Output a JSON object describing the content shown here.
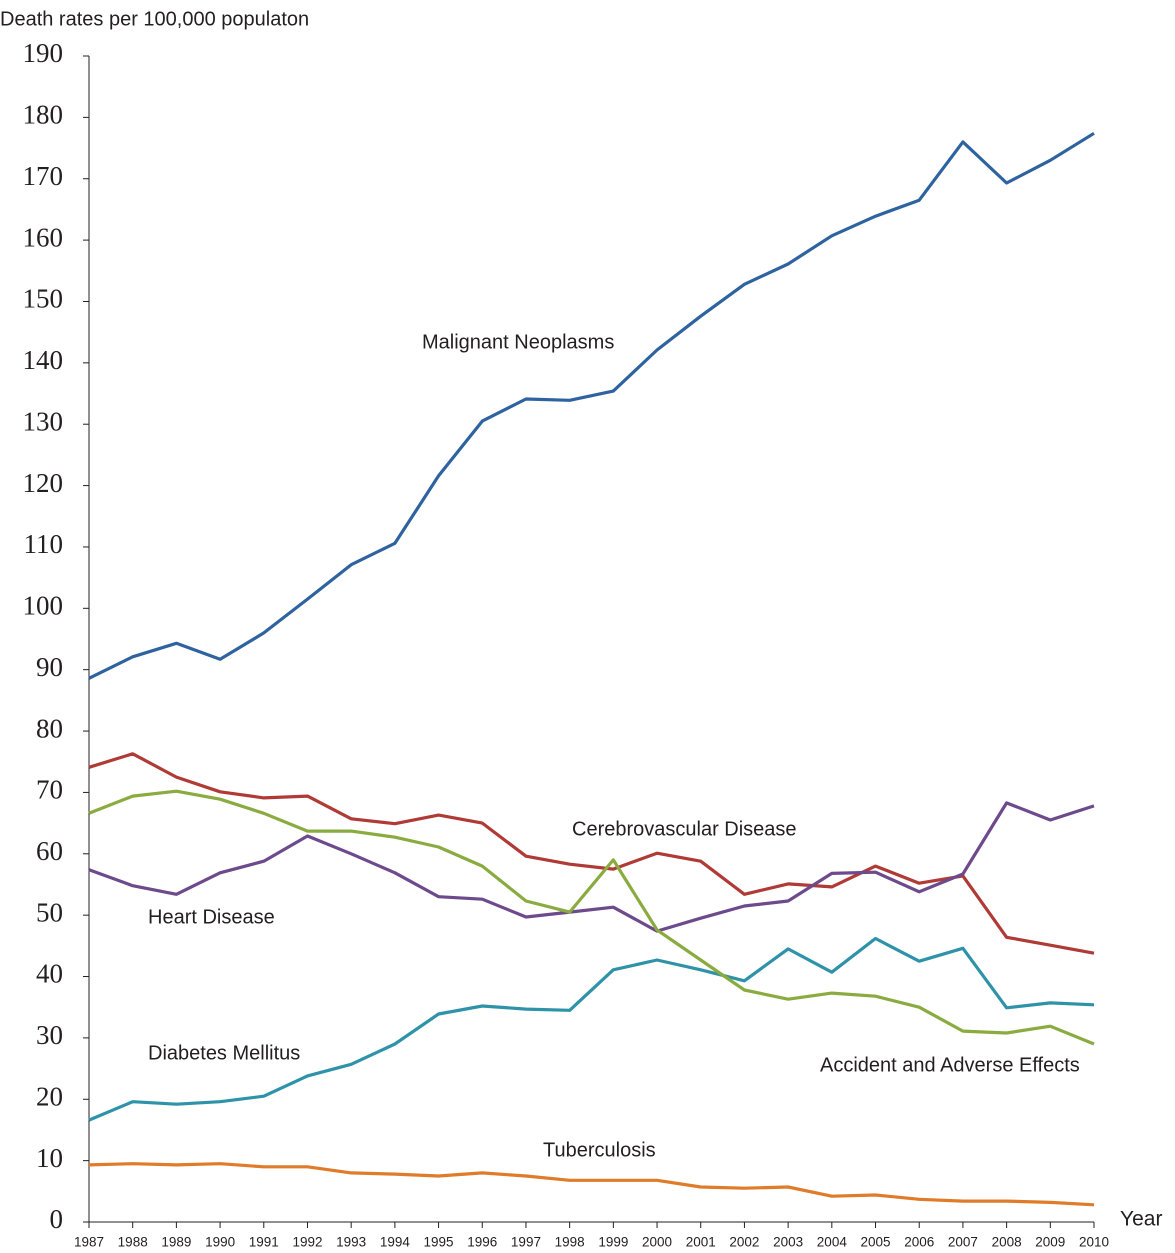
{
  "chart_data": {
    "type": "line",
    "y_label": "Death rates per 100,000 populaton",
    "x_label": "Year",
    "categories": [
      "1987",
      "1988",
      "1989",
      "1990",
      "1991",
      "1992",
      "1993",
      "1994",
      "1995",
      "1996",
      "1997",
      "1998",
      "1999",
      "2000",
      "2001",
      "2002",
      "2003",
      "2004",
      "2005",
      "2006",
      "2007",
      "2008",
      "2009",
      "2010"
    ],
    "series": [
      {
        "name": "Malignant Neoplasms",
        "color": "#2e63a0",
        "values": [
          88.6,
          92.1,
          94.3,
          91.7,
          96.0,
          101.5,
          107.1,
          110.6,
          121.6,
          130.5,
          134.1,
          133.9,
          135.4,
          142.1,
          147.6,
          152.8,
          156.1,
          160.7,
          163.9,
          166.5,
          176.0,
          169.3,
          173.0,
          177.4
        ]
      },
      {
        "name": "Cerebrovascular Disease",
        "color": "#b03a35",
        "values": [
          74.1,
          76.3,
          72.5,
          70.1,
          69.1,
          69.4,
          65.7,
          64.9,
          66.3,
          65.0,
          59.6,
          58.3,
          57.5,
          60.1,
          58.8,
          53.4,
          55.1,
          54.6,
          58.0,
          55.2,
          56.4,
          46.4,
          45.1,
          43.8
        ]
      },
      {
        "name": "Heart Disease",
        "color": "#6c4a8c",
        "values": [
          57.4,
          54.8,
          53.4,
          56.9,
          58.8,
          62.9,
          60.0,
          56.9,
          53.0,
          52.6,
          49.7,
          50.5,
          51.3,
          47.4,
          49.5,
          51.5,
          52.3,
          56.8,
          57.0,
          53.8,
          56.7,
          68.3,
          65.5,
          67.8
        ]
      },
      {
        "name": "Diabetes Mellitus",
        "color": "#2e93a8",
        "values": [
          16.6,
          19.6,
          19.2,
          19.6,
          20.5,
          23.8,
          25.7,
          29.0,
          33.9,
          35.2,
          34.7,
          34.5,
          41.1,
          42.7,
          41.1,
          39.3,
          44.5,
          40.7,
          46.2,
          42.5,
          44.6,
          34.9,
          35.7,
          35.4
        ]
      },
      {
        "name": "Accident and Adverse Effects",
        "color": "#8aab3f",
        "values": [
          66.6,
          69.4,
          70.2,
          68.9,
          66.6,
          63.7,
          63.7,
          62.7,
          61.1,
          58.0,
          52.3,
          50.5,
          59.0,
          47.6,
          42.7,
          37.8,
          36.3,
          37.3,
          36.8,
          35.0,
          31.1,
          30.8,
          31.9,
          29.0
        ]
      },
      {
        "name": "Tuberculosis",
        "color": "#e07b2a",
        "values": [
          9.3,
          9.5,
          9.3,
          9.5,
          9.0,
          9.0,
          8.0,
          7.8,
          7.5,
          8.0,
          7.5,
          6.8,
          6.8,
          6.8,
          5.7,
          5.5,
          5.7,
          4.2,
          4.4,
          3.7,
          3.4,
          3.4,
          3.2,
          2.8
        ]
      }
    ],
    "ylim": [
      0,
      190
    ],
    "yticks": [
      0,
      10,
      20,
      30,
      40,
      50,
      60,
      70,
      80,
      90,
      100,
      110,
      120,
      130,
      140,
      150,
      160,
      170,
      180,
      190
    ],
    "grid": false
  }
}
